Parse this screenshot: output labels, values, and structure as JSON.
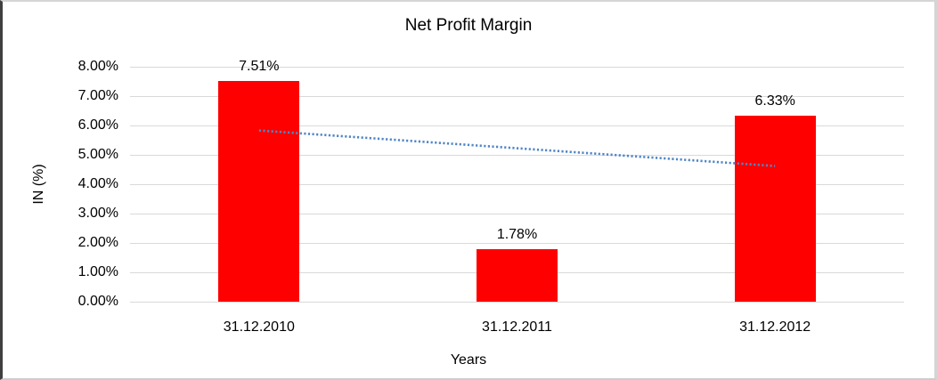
{
  "chart_data": {
    "type": "bar",
    "title": "Net Profit Margin",
    "xlabel": "Years",
    "ylabel": "IN (%)",
    "categories": [
      "31.12.2010",
      "31.12.2011",
      "31.12.2012"
    ],
    "values": [
      7.51,
      1.78,
      6.33
    ],
    "data_labels": [
      "7.51%",
      "1.78%",
      "6.33%"
    ],
    "ylim": [
      0,
      8
    ],
    "ytick_step": 1,
    "ytick_labels": [
      "0.00%",
      "1.00%",
      "2.00%",
      "3.00%",
      "4.00%",
      "5.00%",
      "6.00%",
      "7.00%",
      "8.00%"
    ],
    "grid": true,
    "legend_position": "none",
    "bar_color": "#ff0000",
    "gridline_color": "#d9d9d9",
    "text_color": "#000000",
    "background_color": "#ffffff",
    "trendline": {
      "type": "linear",
      "style": "dotted",
      "color": "#4f86c6",
      "start_value": 5.83,
      "end_value": 4.62
    }
  }
}
